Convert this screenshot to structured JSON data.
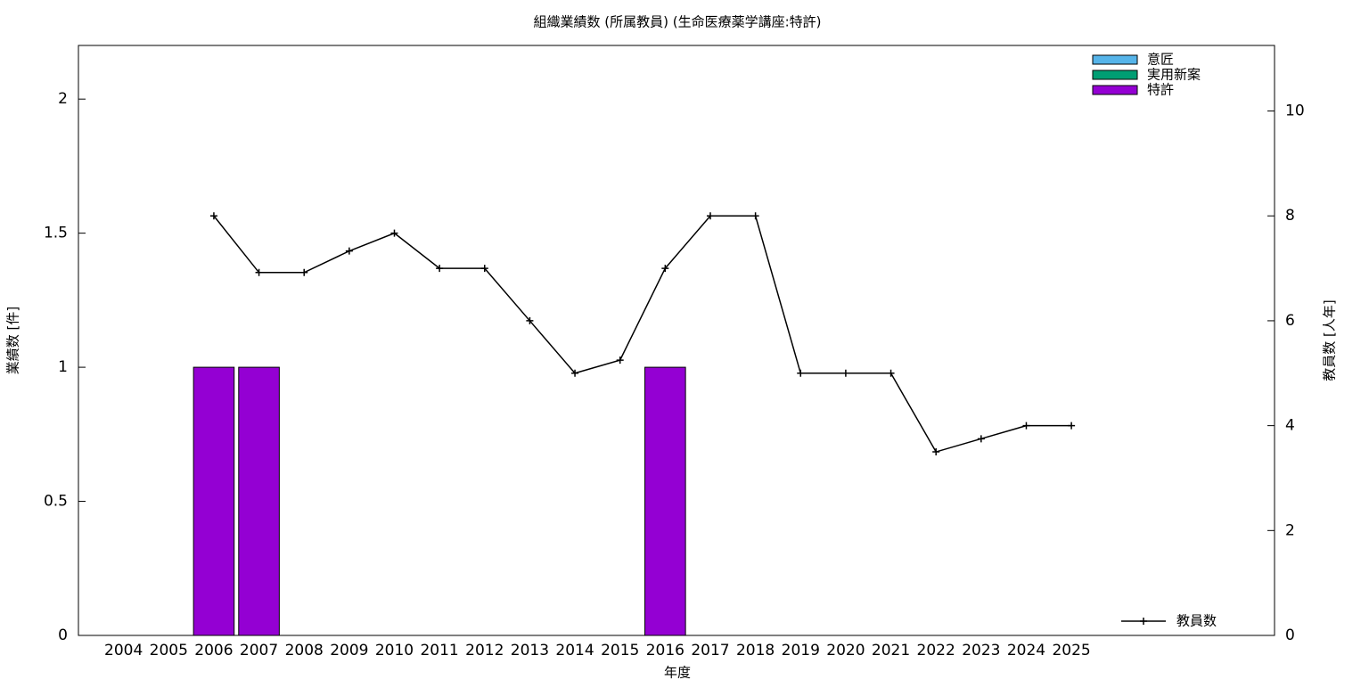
{
  "chart_data": {
    "type": "bar",
    "title": "組織業績数 (所属教員) (生命医療薬学講座:特許)",
    "x_label": "年度",
    "y_label": "業績数 [件]",
    "y2_label": "教員数 [人年]",
    "categories": [
      "2004",
      "2005",
      "2006",
      "2007",
      "2008",
      "2009",
      "2010",
      "2011",
      "2012",
      "2013",
      "2014",
      "2015",
      "2016",
      "2017",
      "2018",
      "2019",
      "2020",
      "2021",
      "2022",
      "2023",
      "2024",
      "2025"
    ],
    "stacked": true,
    "series": [
      {
        "name": "意匠",
        "color": "#56b4e9",
        "values": [
          0,
          0,
          0,
          0,
          0,
          0,
          0,
          0,
          0,
          0,
          0,
          0,
          0,
          0,
          0,
          0,
          0,
          0,
          0,
          0,
          0,
          0
        ]
      },
      {
        "name": "実用新案",
        "color": "#009e73",
        "values": [
          0,
          0,
          0,
          0,
          0,
          0,
          0,
          0,
          0,
          0,
          0,
          0,
          0,
          0,
          0,
          0,
          0,
          0,
          0,
          0,
          0,
          0
        ]
      },
      {
        "name": "特許",
        "color": "#9400d3",
        "values": [
          0,
          0,
          1,
          1,
          0,
          0,
          0,
          0,
          0,
          0,
          0,
          0,
          1,
          0,
          0,
          0,
          0,
          0,
          0,
          0,
          0,
          0
        ]
      },
      {
        "name": "教員数",
        "color": "#000000",
        "type": "line",
        "axis": "y2",
        "values": [
          null,
          null,
          8,
          6.92,
          6.92,
          7.33,
          7.67,
          7,
          7,
          6,
          5,
          5.25,
          7,
          8,
          8,
          5,
          5,
          5,
          3.5,
          3.75,
          4,
          4
        ]
      }
    ],
    "ylim": [
      0,
      2.2
    ],
    "yticks": [
      0,
      0.5,
      1,
      1.5,
      2
    ],
    "y2lim": [
      0,
      11.25
    ],
    "y2ticks": [
      0,
      2,
      4,
      6,
      8,
      10
    ],
    "legend": "top-right",
    "line_legend": "bottom-right"
  }
}
